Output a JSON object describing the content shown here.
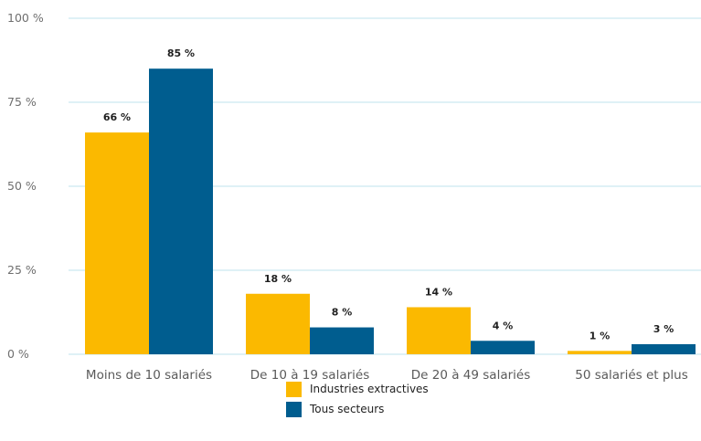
{
  "chart_data": {
    "type": "bar",
    "categories": [
      "Moins de 10 salariés",
      "De 10 à 19 salariés",
      "De 20 à 49 salariés",
      "50 salariés et plus"
    ],
    "series": [
      {
        "name": "Industries extractives",
        "values": [
          66,
          18,
          14,
          1
        ],
        "color": "#FBB900"
      },
      {
        "name": "Tous secteurs",
        "values": [
          85,
          8,
          4,
          3
        ],
        "color": "#005D8F"
      }
    ],
    "data_labels": [
      [
        "66 %",
        "18 %",
        "14 %",
        "1 %"
      ],
      [
        "85 %",
        "8 %",
        "4 %",
        "3 %"
      ]
    ],
    "y_ticks": [
      {
        "value": 0,
        "label": "0 %"
      },
      {
        "value": 25,
        "label": "25 %"
      },
      {
        "value": 50,
        "label": "50 %"
      },
      {
        "value": 75,
        "label": "75 %"
      },
      {
        "value": 100,
        "label": "100 %"
      }
    ],
    "ylim": [
      0,
      100
    ],
    "grid": true,
    "grid_color": "#BFE3EE",
    "legend_position": "bottom"
  }
}
